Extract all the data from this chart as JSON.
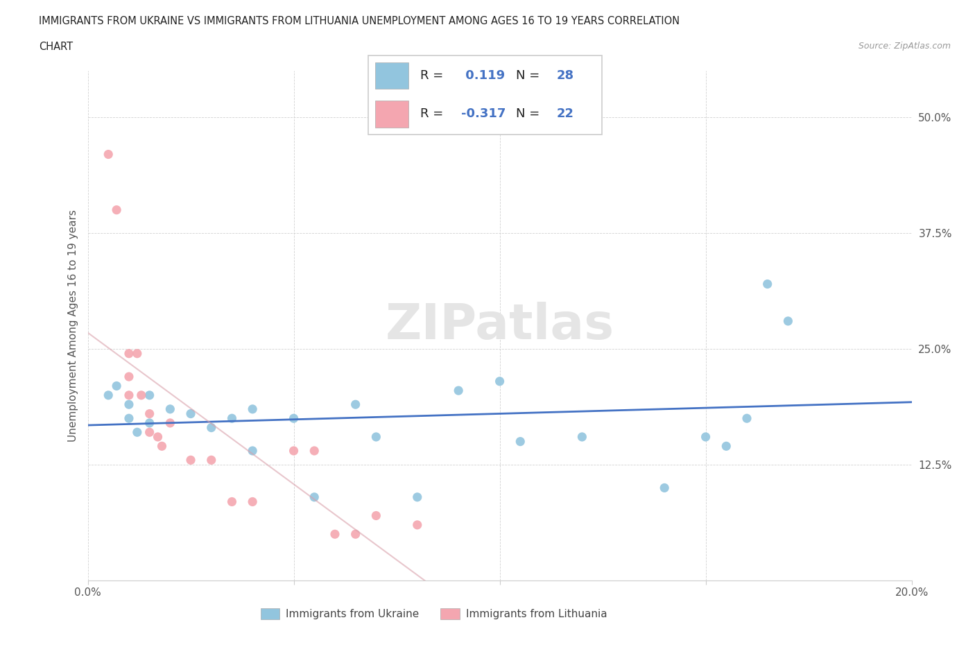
{
  "title_line1": "IMMIGRANTS FROM UKRAINE VS IMMIGRANTS FROM LITHUANIA UNEMPLOYMENT AMONG AGES 16 TO 19 YEARS CORRELATION",
  "title_line2": "CHART",
  "source": "Source: ZipAtlas.com",
  "ylabel": "Unemployment Among Ages 16 to 19 years",
  "xlim": [
    0.0,
    0.2
  ],
  "ylim": [
    0.0,
    0.55
  ],
  "ukraine_color": "#92C5DE",
  "lithuania_color": "#F4A6B0",
  "ukraine_line_color": "#4472C4",
  "lithuania_line_color": "#D9A0AA",
  "R_ukraine": 0.119,
  "N_ukraine": 28,
  "R_lithuania": -0.317,
  "N_lithuania": 22,
  "ukraine_x": [
    0.005,
    0.007,
    0.01,
    0.01,
    0.012,
    0.015,
    0.015,
    0.02,
    0.025,
    0.03,
    0.035,
    0.04,
    0.04,
    0.05,
    0.055,
    0.065,
    0.07,
    0.08,
    0.09,
    0.1,
    0.105,
    0.12,
    0.14,
    0.15,
    0.155,
    0.16,
    0.165,
    0.17
  ],
  "ukraine_y": [
    0.2,
    0.21,
    0.175,
    0.19,
    0.16,
    0.2,
    0.17,
    0.185,
    0.18,
    0.165,
    0.175,
    0.14,
    0.185,
    0.175,
    0.09,
    0.19,
    0.155,
    0.09,
    0.205,
    0.215,
    0.15,
    0.155,
    0.1,
    0.155,
    0.145,
    0.175,
    0.32,
    0.28
  ],
  "lithuania_x": [
    0.005,
    0.007,
    0.01,
    0.01,
    0.01,
    0.012,
    0.013,
    0.015,
    0.015,
    0.017,
    0.018,
    0.02,
    0.025,
    0.03,
    0.035,
    0.04,
    0.05,
    0.055,
    0.06,
    0.065,
    0.07,
    0.08
  ],
  "lithuania_y": [
    0.46,
    0.4,
    0.245,
    0.22,
    0.2,
    0.245,
    0.2,
    0.18,
    0.16,
    0.155,
    0.145,
    0.17,
    0.13,
    0.13,
    0.085,
    0.085,
    0.14,
    0.14,
    0.05,
    0.05,
    0.07,
    0.06
  ],
  "legend_ukraine": "Immigrants from Ukraine",
  "legend_lithuania": "Immigrants from Lithuania",
  "watermark": "ZIPatlas"
}
